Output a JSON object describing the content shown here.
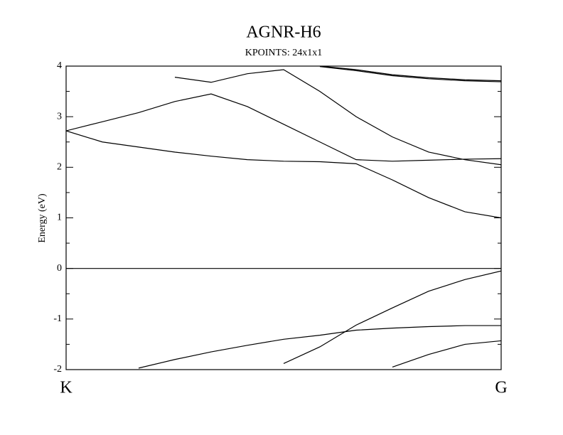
{
  "chart_data": {
    "type": "line",
    "title": "AGNR-H6",
    "subtitle": "KPOINTS: 24x1x1",
    "y_label": "Energy (eV)",
    "color": "#000000",
    "x": [
      0,
      0.08333,
      0.16667,
      0.25,
      0.33333,
      0.41667,
      0.5,
      0.58333,
      0.66667,
      0.75,
      0.83333,
      0.91667,
      1
    ],
    "xlim": [
      0,
      1
    ],
    "xticks": [
      {
        "value": 0,
        "label": "K"
      },
      {
        "value": 1,
        "label": "G"
      }
    ],
    "ylim": [
      -2,
      4
    ],
    "yticks": [
      -2,
      -1,
      0,
      1,
      2,
      3,
      4
    ],
    "series": [
      {
        "values": [
          2.72,
          2.5,
          2.4,
          2.3,
          2.22,
          2.15,
          2.12,
          2.11,
          2.07,
          1.75,
          1.4,
          1.12,
          1.0
        ]
      },
      {
        "values": [
          2.72,
          2.9,
          3.08,
          3.3,
          3.45,
          3.2,
          2.85,
          2.5,
          2.15,
          2.12,
          2.14,
          2.16,
          2.17
        ]
      },
      {
        "values": [
          null,
          null,
          null,
          3.78,
          3.68,
          3.85,
          3.93,
          3.5,
          3.0,
          2.6,
          2.3,
          2.15,
          2.05
        ]
      },
      {
        "values": [
          null,
          null,
          null,
          null,
          null,
          null,
          null,
          4.0,
          3.93,
          3.83,
          3.77,
          3.73,
          3.71
        ]
      },
      {
        "values": [
          null,
          null,
          null,
          null,
          null,
          null,
          null,
          3.99,
          3.91,
          3.81,
          3.75,
          3.71,
          3.69
        ]
      },
      {
        "values": [
          0,
          0,
          0,
          0,
          0,
          0,
          0,
          0,
          0,
          0,
          0,
          0,
          0
        ]
      },
      {
        "values": [
          null,
          null,
          null,
          null,
          null,
          null,
          -1.88,
          -1.55,
          -1.12,
          -0.78,
          -0.45,
          -0.22,
          -0.05
        ]
      },
      {
        "values": [
          null,
          null,
          -1.97,
          -1.8,
          -1.65,
          -1.52,
          -1.4,
          -1.32,
          -1.22,
          -1.18,
          -1.15,
          -1.13,
          -1.13
        ]
      },
      {
        "values": [
          null,
          null,
          null,
          null,
          null,
          null,
          null,
          null,
          null,
          -1.95,
          -1.7,
          -1.5,
          -1.43
        ]
      }
    ]
  }
}
